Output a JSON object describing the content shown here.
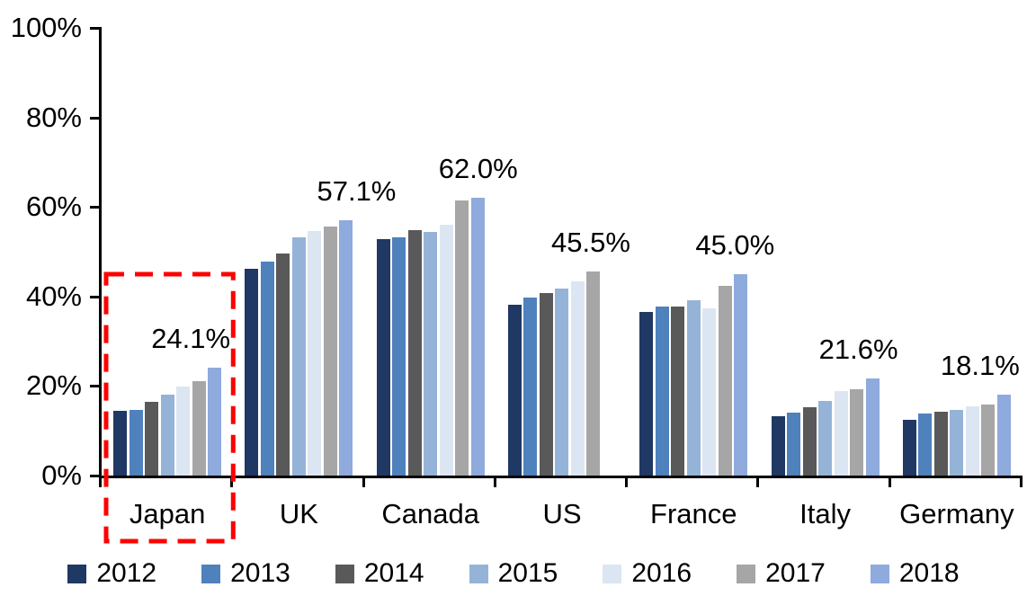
{
  "chart_data": {
    "type": "bar",
    "title": "",
    "xlabel": "",
    "ylabel": "",
    "ylim": [
      0,
      100
    ],
    "grid": false,
    "legend_position": "bottom",
    "categories": [
      "Japan",
      "UK",
      "Canada",
      "US",
      "France",
      "Italy",
      "Germany"
    ],
    "series": [
      {
        "name": "2012",
        "color": "#1F3864",
        "values": [
          14.5,
          46.2,
          52.8,
          38.2,
          36.5,
          13.2,
          12.4
        ]
      },
      {
        "name": "2013",
        "color": "#4F81BD",
        "values": [
          14.7,
          47.7,
          53.2,
          39.8,
          37.7,
          14.0,
          13.8
        ]
      },
      {
        "name": "2014",
        "color": "#595959",
        "values": [
          16.5,
          49.7,
          54.8,
          40.8,
          37.8,
          15.3,
          14.3
        ]
      },
      {
        "name": "2015",
        "color": "#95B3D7",
        "values": [
          18.0,
          53.2,
          54.5,
          41.8,
          39.2,
          16.7,
          14.7
        ]
      },
      {
        "name": "2016",
        "color": "#DCE6F2",
        "values": [
          19.9,
          54.6,
          56.0,
          43.3,
          37.3,
          18.9,
          15.4
        ]
      },
      {
        "name": "2017",
        "color": "#A6A6A6",
        "values": [
          21.0,
          55.7,
          61.5,
          45.5,
          42.3,
          19.2,
          15.8
        ]
      },
      {
        "name": "2018",
        "color": "#8FAADC",
        "values": [
          24.1,
          57.1,
          62.0,
          null,
          45.0,
          21.6,
          18.1
        ]
      }
    ],
    "data_labels": [
      "24.1%",
      "57.1%",
      "62.0%",
      "45.5%",
      "45.0%",
      "21.6%",
      "18.1%"
    ],
    "y_ticks": [
      {
        "value": 100,
        "label": "100%"
      },
      {
        "value": 80,
        "label": "80%"
      },
      {
        "value": 60,
        "label": "60%"
      },
      {
        "value": 40,
        "label": "40%"
      },
      {
        "value": 20,
        "label": "20%"
      },
      {
        "value": 0,
        "label": "0%"
      }
    ],
    "highlight": {
      "category": "Japan",
      "style": "red-dashed-box",
      "color": "#FF0000"
    }
  }
}
